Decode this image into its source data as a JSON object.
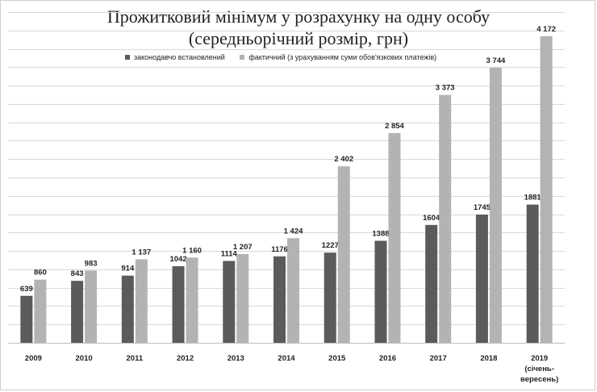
{
  "chart_data": {
    "type": "bar",
    "title": "Прожитковий мінімум у розрахунку на одну особу",
    "subtitle": "(середньорічний розмір, грн)",
    "xlabel": "",
    "ylabel": "",
    "categories": [
      "2009",
      "2010",
      "2011",
      "2012",
      "2013",
      "2014",
      "2015",
      "2016",
      "2017",
      "2018",
      "2019"
    ],
    "category_sublabels": [
      "",
      "",
      "",
      "",
      "",
      "",
      "",
      "",
      "",
      "",
      "(січень-вересень)"
    ],
    "series": [
      {
        "name": "законодавчо встановлений",
        "color": "#5b5b5b",
        "values": [
          639,
          843,
          914,
          1042,
          1114,
          1176,
          1227,
          1388,
          1604,
          1745,
          1881
        ],
        "labels": [
          "639",
          "843",
          "914",
          "1042",
          "1114",
          "1176",
          "1227",
          "1388",
          "1604",
          "1745",
          "1881"
        ]
      },
      {
        "name": "фактичний (з урахуванням суми обов'язкових платежів)",
        "color": "#b3b3b3",
        "values": [
          860,
          983,
          1137,
          1160,
          1207,
          1424,
          2402,
          2854,
          3373,
          3744,
          4172
        ],
        "labels": [
          "860",
          "983",
          "1 137",
          "1 160",
          "1 207",
          "1 424",
          "2 402",
          "2 854",
          "3 373",
          "3 744",
          "4 172"
        ]
      }
    ],
    "ylim": [
      0,
      4500
    ],
    "grid": true,
    "legend_position": "top-left"
  }
}
